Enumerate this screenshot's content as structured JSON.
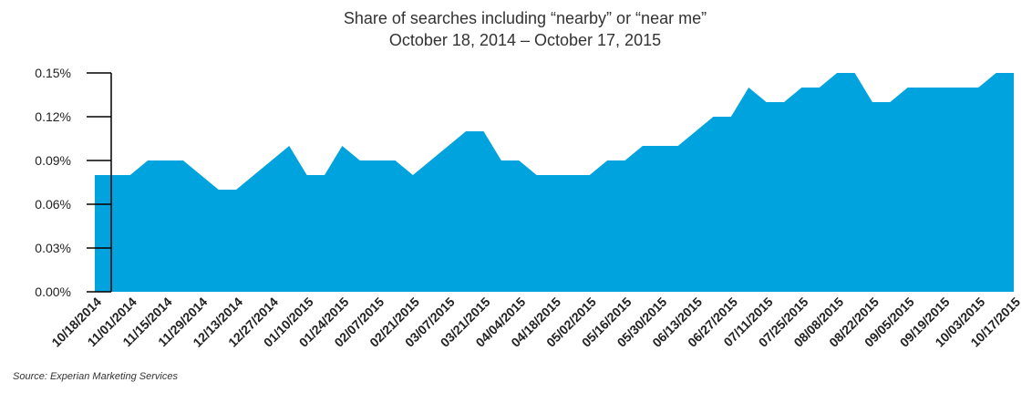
{
  "chart_data": {
    "type": "area",
    "title": "Share of searches including “nearby” or “near me”",
    "subtitle": "October 18, 2014 – October 17, 2015",
    "xlabel": "",
    "ylabel": "",
    "ylim": [
      0,
      0.15
    ],
    "y_ticks": [
      "0.00%",
      "0.03%",
      "0.06%",
      "0.09%",
      "0.12%",
      "0.15%"
    ],
    "y_tick_values": [
      0,
      0.03,
      0.06,
      0.09,
      0.12,
      0.15
    ],
    "x_tick_labels": [
      "10/18/2014",
      "11/01/2014",
      "11/15/2014",
      "11/29/2014",
      "12/13/2014",
      "12/27/2014",
      "01/10/2015",
      "01/24/2015",
      "02/07/2015",
      "02/21/2015",
      "03/07/2015",
      "03/21/2015",
      "04/04/2015",
      "04/18/2015",
      "05/02/2015",
      "05/16/2015",
      "05/30/2015",
      "06/13/2015",
      "06/27/2015",
      "07/11/2015",
      "07/25/2015",
      "08/08/2015",
      "08/22/2015",
      "09/05/2015",
      "09/19/2015",
      "10/03/2015",
      "10/17/2015"
    ],
    "x": [
      "10/18/2014",
      "10/25/2014",
      "11/01/2014",
      "11/08/2014",
      "11/15/2014",
      "11/22/2014",
      "11/29/2014",
      "12/06/2014",
      "12/13/2014",
      "12/20/2014",
      "12/27/2014",
      "01/03/2015",
      "01/10/2015",
      "01/17/2015",
      "01/24/2015",
      "01/31/2015",
      "02/07/2015",
      "02/14/2015",
      "02/21/2015",
      "02/28/2015",
      "03/07/2015",
      "03/14/2015",
      "03/21/2015",
      "03/28/2015",
      "04/04/2015",
      "04/11/2015",
      "04/18/2015",
      "04/25/2015",
      "05/02/2015",
      "05/09/2015",
      "05/16/2015",
      "05/23/2015",
      "05/30/2015",
      "06/06/2015",
      "06/13/2015",
      "06/20/2015",
      "06/27/2015",
      "07/04/2015",
      "07/11/2015",
      "07/18/2015",
      "07/25/2015",
      "08/01/2015",
      "08/08/2015",
      "08/15/2015",
      "08/22/2015",
      "08/29/2015",
      "09/05/2015",
      "09/12/2015",
      "09/19/2015",
      "09/26/2015",
      "10/03/2015",
      "10/10/2015",
      "10/17/2015"
    ],
    "series": [
      {
        "color": "#00a3dd",
        "values": [
          0.08,
          0.08,
          0.08,
          0.09,
          0.09,
          0.09,
          0.08,
          0.07,
          0.07,
          0.08,
          0.09,
          0.1,
          0.08,
          0.08,
          0.1,
          0.09,
          0.09,
          0.09,
          0.08,
          0.09,
          0.1,
          0.11,
          0.11,
          0.09,
          0.09,
          0.08,
          0.08,
          0.08,
          0.08,
          0.09,
          0.09,
          0.1,
          0.1,
          0.1,
          0.11,
          0.12,
          0.12,
          0.14,
          0.13,
          0.13,
          0.14,
          0.14,
          0.15,
          0.15,
          0.13,
          0.13,
          0.14,
          0.14,
          0.14,
          0.14,
          0.14,
          0.15,
          0.15
        ]
      }
    ],
    "grid": false,
    "legend": "none"
  },
  "source": "Source: Experian Marketing Services"
}
